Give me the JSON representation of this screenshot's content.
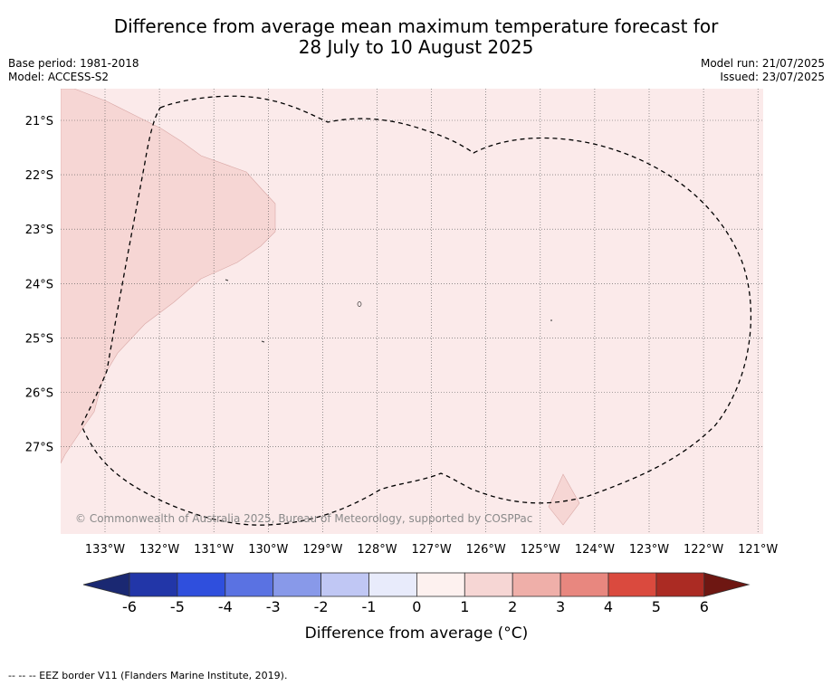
{
  "title": {
    "line1": "Difference from average mean maximum temperature forecast for",
    "line2": "28 July to 10 August 2025"
  },
  "meta_left": [
    "Base period: 1981-2018",
    "Model: ACCESS-S2"
  ],
  "meta_right": [
    "Model run: 21/07/2025",
    "Issued: 23/07/2025"
  ],
  "copyright": "© Commonwealth of Australia 2025, Bureau of Meteorology, supported by COSPPac",
  "map": {
    "lon_labels": [
      "133°W",
      "132°W",
      "131°W",
      "130°W",
      "129°W",
      "128°W",
      "127°W",
      "126°W",
      "125°W",
      "124°W",
      "123°W",
      "122°W",
      "121°W"
    ],
    "lat_labels": [
      "21°S",
      "22°S",
      "23°S",
      "24°S",
      "25°S",
      "26°S",
      "27°S"
    ],
    "background_class_color": "#fbeaea",
    "warm_class_color": "#f6d6d4"
  },
  "colorbar": {
    "label": "Difference from average (°C)",
    "ticks": [
      "-6",
      "-5",
      "-4",
      "-3",
      "-2",
      "-1",
      "0",
      "1",
      "2",
      "3",
      "4",
      "5",
      "6"
    ],
    "under_color": "#1a2872",
    "over_color": "#6e1712",
    "colors": [
      "#2236a8",
      "#2f4fdd",
      "#5a72e2",
      "#8899e9",
      "#c0c7f4",
      "#e8ebfb",
      "#fdf1ef",
      "#f6d6d4",
      "#efafa9",
      "#e8877f",
      "#da4a3e",
      "#ab2b23"
    ]
  },
  "footer": "--  --  -- EEZ border V11 (Flanders Marine Institute, 2019)."
}
